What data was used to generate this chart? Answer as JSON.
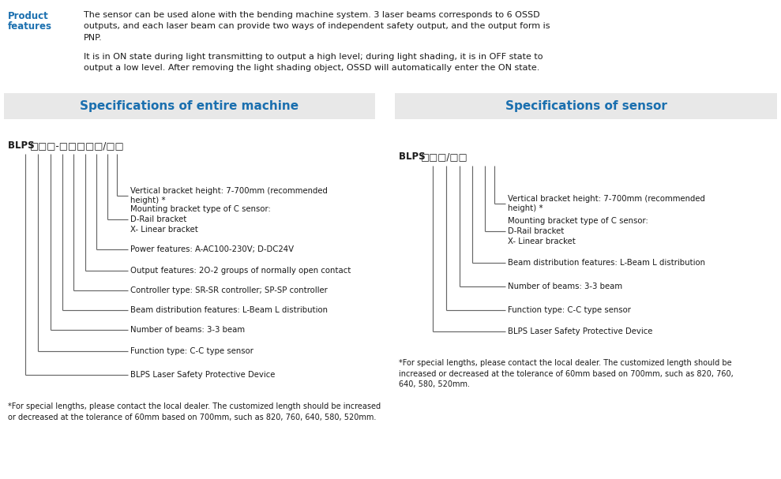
{
  "bg_color": "#ffffff",
  "header_bg": "#e8e8e8",
  "blue_color": "#1a6faf",
  "dark_text": "#1a1a1a",
  "line_color": "#666666",
  "product_text_1": "The sensor can be used alone with the bending machine system. 3 laser beams corresponds to 6 OSSD\noutputs, and each laser beam can provide two ways of independent safety output, and the output form is\nPNP.",
  "product_text_2": "It is in ON state during light transmitting to output a high level; during light shading, it is in OFF state to\noutput a low level. After removing the light shading object, OSSD will automatically enter the ON state.",
  "spec_machine_title": "Specifications of entire machine",
  "spec_sensor_title": "Specifications of sensor",
  "machine_model_prefix": "BLPS ",
  "machine_model_boxes": "□□□-□□□□□/□□",
  "sensor_model_prefix": "BLPS ",
  "sensor_model_boxes": "□□□/□□",
  "machine_items": [
    [
      "Vertical bracket height: 7-700mm (recommended",
      "height) *"
    ],
    [
      "Mounting bracket type of C sensor:",
      "D-Rail bracket",
      "X- Linear bracket"
    ],
    [
      "Power features: A-AC100-230V; D-DC24V"
    ],
    [
      "Output features: 2O-2 groups of normally open contact"
    ],
    [
      "Controller type: SR-SR controller; SP-SP controller"
    ],
    [
      "Beam distribution features: L-Beam L distribution"
    ],
    [
      "Number of beams: 3-3 beam"
    ],
    [
      "Function type: C-C type sensor"
    ],
    [
      "BLPS Laser Safety Protective Device"
    ]
  ],
  "sensor_items": [
    [
      "Vertical bracket height: 7-700mm (recommended",
      "height) *"
    ],
    [
      "Mounting bracket type of C sensor:",
      "D-Rail bracket",
      "X- Linear bracket"
    ],
    [
      "Beam distribution features: L-Beam L distribution"
    ],
    [
      "Number of beams: 3-3 beam"
    ],
    [
      "Function type: C-C type sensor"
    ],
    [
      "BLPS Laser Safety Protective Device"
    ]
  ],
  "machine_footnote": "*For special lengths, please contact the local dealer. The customized length should be increased\nor decreased at the tolerance of 60mm based on 700mm, such as 820, 760, 640, 580, 520mm.",
  "sensor_footnote": "*For special lengths, please contact the local dealer. The customized length should be\nincreased or decreased at the tolerance of 60mm based on 700mm, such as 820, 760,\n640, 580, 520mm."
}
